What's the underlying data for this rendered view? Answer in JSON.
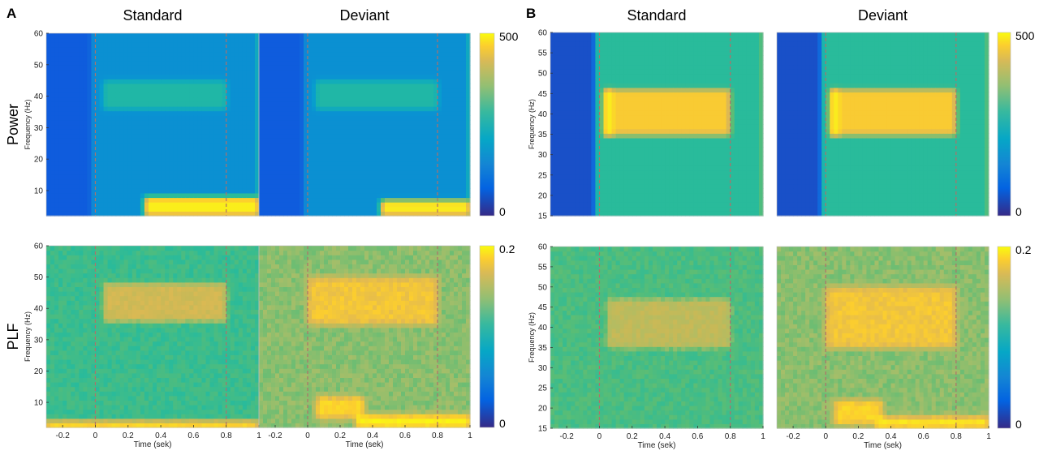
{
  "chart_data": {
    "type": "heatmap",
    "colormap": "parula",
    "x_axis": {
      "label": "Time (sek)",
      "range": [
        -0.3,
        1.0
      ],
      "ticks": [
        -0.2,
        0,
        0.2,
        0.4,
        0.6,
        0.8,
        1
      ],
      "tick_labels": [
        "-0.2",
        "0",
        "0.2",
        "0.4",
        "0.6",
        "0.8",
        "1"
      ]
    },
    "marker_times": [
      0,
      0.8
    ],
    "row_labels": [
      "Power",
      "PLF"
    ],
    "column_titles": [
      "Standard",
      "Deviant"
    ],
    "panels": [
      {
        "label": "A",
        "y_axis": {
          "label": "Frequency (Hz)",
          "range": [
            2,
            60
          ],
          "ticks": [
            10,
            20,
            30,
            40,
            50,
            60
          ]
        },
        "colorbars": [
          {
            "row": "Power",
            "min": 0,
            "max": 500,
            "min_label": "0",
            "max_label": "500"
          },
          {
            "row": "PLF",
            "min": 0,
            "max": 0.2,
            "min_label": "0",
            "max_label": "0.2"
          }
        ],
        "maps": [
          {
            "row": "Power",
            "column": "Standard",
            "prestim_value": 40,
            "background_value": 110,
            "edge_value": 170,
            "features": [
              {
                "name": "40 Hz band",
                "t": [
                  0.05,
                  0.8
                ],
                "f": [
                  36,
                  45
                ],
                "value": 190
              },
              {
                "name": "low-frequency response",
                "t": [
                  0.3,
                  1.0
                ],
                "f": [
                  2,
                  8
                ],
                "value": 470
              }
            ]
          },
          {
            "row": "Power",
            "column": "Deviant",
            "prestim_value": 40,
            "background_value": 110,
            "edge_value": 170,
            "features": [
              {
                "name": "40 Hz band",
                "t": [
                  0.05,
                  0.8
                ],
                "f": [
                  36,
                  45
                ],
                "value": 190
              },
              {
                "name": "low-frequency response",
                "t": [
                  0.45,
                  1.0
                ],
                "f": [
                  2,
                  7
                ],
                "value": 460
              }
            ]
          },
          {
            "row": "PLF",
            "column": "Standard",
            "background_value": 0.09,
            "features": [
              {
                "name": "40 Hz band",
                "t": [
                  0.05,
                  0.8
                ],
                "f": [
                  36,
                  48
                ],
                "value": 0.14
              },
              {
                "name": "low-frequency baseline",
                "t": [
                  -0.3,
                  1.0
                ],
                "f": [
                  2,
                  4
                ],
                "value": 0.19
              }
            ]
          },
          {
            "row": "PLF",
            "column": "Deviant",
            "background_value": 0.11,
            "features": [
              {
                "name": "40 Hz band",
                "t": [
                  0.0,
                  0.8
                ],
                "f": [
                  35,
                  50
                ],
                "value": 0.16
              },
              {
                "name": "low-frequency burst",
                "t": [
                  0.05,
                  0.35
                ],
                "f": [
                  5,
                  12
                ],
                "value": 0.17
              },
              {
                "name": "low-frequency baseline",
                "t": [
                  0.3,
                  1.0
                ],
                "f": [
                  2,
                  6
                ],
                "value": 0.19
              }
            ]
          }
        ]
      },
      {
        "label": "B",
        "y_axis": {
          "label": "Frequency (Hz)",
          "range": [
            15,
            60
          ],
          "ticks": [
            15,
            20,
            25,
            30,
            35,
            40,
            45,
            50,
            55,
            60
          ]
        },
        "colorbars": [
          {
            "row": "Power",
            "min": 0,
            "max": 500,
            "min_label": "0",
            "max_label": "500"
          },
          {
            "row": "PLF",
            "min": 0,
            "max": 0.2,
            "min_label": "0",
            "max_label": "0.2"
          }
        ],
        "maps": [
          {
            "row": "Power",
            "column": "Standard",
            "prestim_value": 30,
            "background_value": 210,
            "edge_value": 260,
            "features": [
              {
                "name": "40 Hz band",
                "t": [
                  0.03,
                  0.8
                ],
                "f": [
                  35,
                  46
                ],
                "value": 410
              },
              {
                "name": "onset peak",
                "t": [
                  0.03,
                  0.08
                ],
                "f": [
                  35,
                  46
                ],
                "value": 470
              }
            ]
          },
          {
            "row": "Power",
            "column": "Deviant",
            "prestim_value": 30,
            "background_value": 210,
            "edge_value": 260,
            "features": [
              {
                "name": "40 Hz band",
                "t": [
                  0.03,
                  0.8
                ],
                "f": [
                  35,
                  46
                ],
                "value": 410
              },
              {
                "name": "onset peak",
                "t": [
                  0.03,
                  0.08
                ],
                "f": [
                  35,
                  46
                ],
                "value": 470
              }
            ]
          },
          {
            "row": "PLF",
            "column": "Standard",
            "background_value": 0.095,
            "features": [
              {
                "name": "40 Hz band",
                "t": [
                  0.05,
                  0.8
                ],
                "f": [
                  35,
                  47
                ],
                "value": 0.13
              }
            ]
          },
          {
            "row": "PLF",
            "column": "Deviant",
            "background_value": 0.11,
            "features": [
              {
                "name": "40 Hz band",
                "t": [
                  0.0,
                  0.8
                ],
                "f": [
                  35,
                  50
                ],
                "value": 0.16
              },
              {
                "name": "low-frequency burst",
                "t": [
                  0.05,
                  0.35
                ],
                "f": [
                  16,
                  22
                ],
                "value": 0.17
              },
              {
                "name": "low-frequency baseline",
                "t": [
                  0.3,
                  1.0
                ],
                "f": [
                  15,
                  18
                ],
                "value": 0.18
              }
            ]
          }
        ]
      }
    ]
  }
}
